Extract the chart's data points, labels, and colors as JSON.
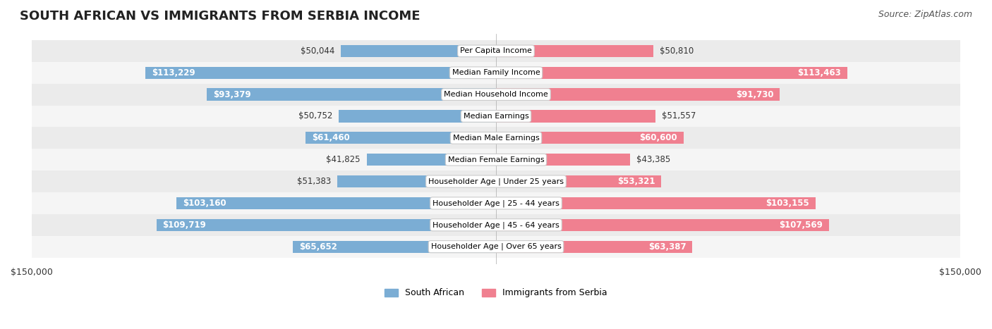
{
  "title": "SOUTH AFRICAN VS IMMIGRANTS FROM SERBIA INCOME",
  "source": "Source: ZipAtlas.com",
  "categories": [
    "Per Capita Income",
    "Median Family Income",
    "Median Household Income",
    "Median Earnings",
    "Median Male Earnings",
    "Median Female Earnings",
    "Householder Age | Under 25 years",
    "Householder Age | 25 - 44 years",
    "Householder Age | 45 - 64 years",
    "Householder Age | Over 65 years"
  ],
  "south_african": [
    50044,
    113229,
    93379,
    50752,
    61460,
    41825,
    51383,
    103160,
    109719,
    65652
  ],
  "immigrants_serbia": [
    50810,
    113463,
    91730,
    51557,
    60600,
    43385,
    53321,
    103155,
    107569,
    63387
  ],
  "south_african_color": "#7badd4",
  "immigrants_serbia_color": "#f08090",
  "bar_bg_color": "#e8e8e8",
  "row_bg_even": "#f5f5f5",
  "row_bg_odd": "#ebebeb",
  "label_box_color": "#ffffff",
  "label_box_edge": "#cccccc",
  "x_max": 150000,
  "x_label_left": "$150,000",
  "x_label_right": "$150,000",
  "legend_labels": [
    "South African",
    "Immigrants from Serbia"
  ],
  "title_fontsize": 13,
  "source_fontsize": 9,
  "bar_label_fontsize": 8.5,
  "category_fontsize": 8,
  "axis_label_fontsize": 9
}
